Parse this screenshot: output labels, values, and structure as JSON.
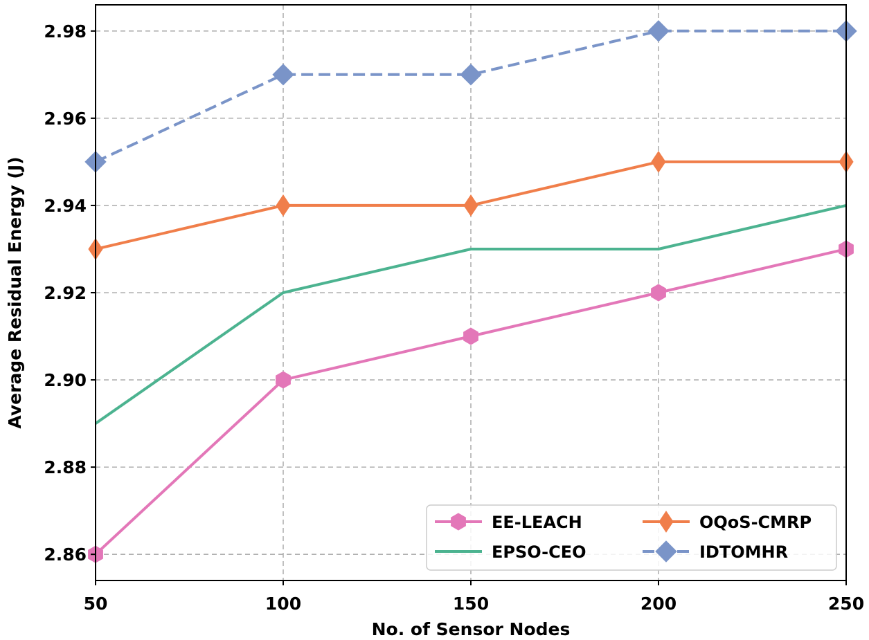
{
  "chart_data": {
    "type": "line",
    "title": "",
    "xlabel": "No. of Sensor Nodes",
    "ylabel": "Average Residual Energy (J)",
    "x": [
      50,
      100,
      150,
      200,
      250
    ],
    "xlim": [
      50,
      250
    ],
    "ylim": [
      2.854,
      2.986
    ],
    "xticks": [
      50,
      100,
      150,
      200,
      250
    ],
    "yticks": [
      2.86,
      2.88,
      2.9,
      2.92,
      2.94,
      2.96,
      2.98
    ],
    "xtick_labels": [
      "50",
      "100",
      "150",
      "200",
      "250"
    ],
    "ytick_labels": [
      "2.86",
      "2.88",
      "2.90",
      "2.92",
      "2.94",
      "2.96",
      "2.98"
    ],
    "grid": true,
    "legend_position": "lower-right",
    "series": [
      {
        "name": "EE-LEACH",
        "values": [
          2.86,
          2.9,
          2.91,
          2.92,
          2.93
        ],
        "color": "#e377b8",
        "marker": "hexagon",
        "dash": "solid"
      },
      {
        "name": "EPSO-CEO",
        "values": [
          2.89,
          2.92,
          2.93,
          2.93,
          2.94
        ],
        "color": "#4cb390",
        "marker": "none",
        "dash": "solid"
      },
      {
        "name": "OQoS-CMRP",
        "values": [
          2.93,
          2.94,
          2.94,
          2.95,
          2.95
        ],
        "color": "#f07e4a",
        "marker": "thin-diamond",
        "dash": "solid"
      },
      {
        "name": "IDTOMHR",
        "values": [
          2.95,
          2.97,
          2.97,
          2.98,
          2.98
        ],
        "color": "#7a94c8",
        "marker": "diamond",
        "dash": "dashed"
      }
    ],
    "legend_order": [
      0,
      2,
      1,
      3
    ]
  }
}
